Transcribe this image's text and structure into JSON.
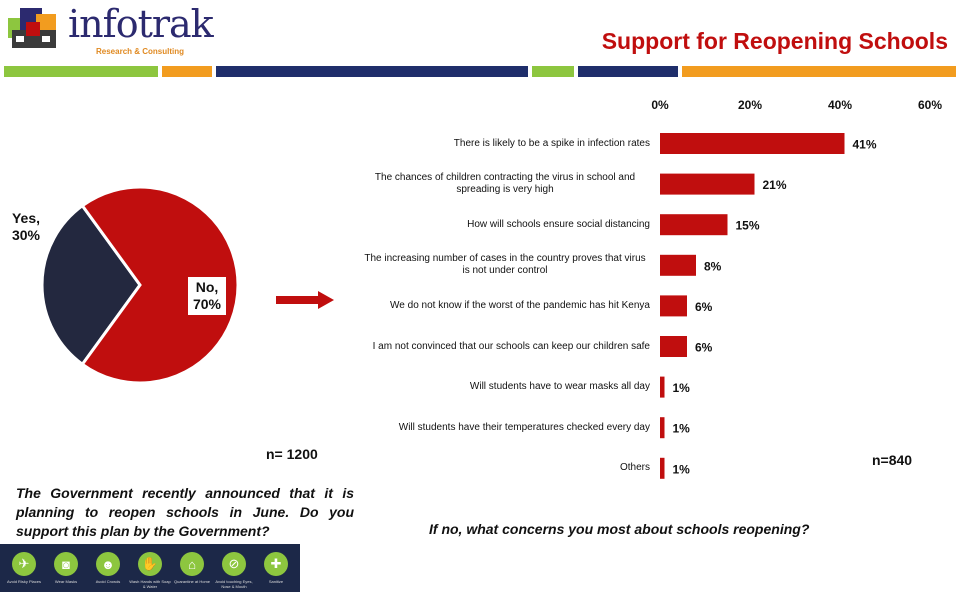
{
  "brand": {
    "name": "infotrak",
    "tagline": "Research & Consulting"
  },
  "title": "Support for Reopening Schools",
  "colors": {
    "red": "#c00e0e",
    "navy": "#23283f",
    "green": "#8dc63f",
    "orange": "#f29c1f",
    "blue": "#1f2e6b"
  },
  "pie": {
    "yes_label": "Yes,",
    "yes_value": "30%",
    "no_label": "No,",
    "no_value": "70%",
    "n_label": "n= 1200",
    "question": "The Government recently announced that it is planning to reopen schools in June. Do you support this plan by the Government?"
  },
  "bar": {
    "n_label": "n=840",
    "question": "If no, what concerns you most about schools reopening?"
  },
  "chart_data": [
    {
      "type": "pie",
      "categories": [
        "Yes",
        "No"
      ],
      "values": [
        30,
        70
      ],
      "colors": [
        "#23283f",
        "#c00e0e"
      ]
    },
    {
      "type": "bar",
      "orientation": "horizontal",
      "categories": [
        "There is likely to be a spike in infection rates",
        "The chances of children contracting the virus in school and spreading is very high",
        "How will schools ensure social distancing",
        "The increasing number of cases in the country proves that virus is not under control",
        "We do not know if the worst of the pandemic has hit Kenya",
        "I am not convinced that our schools can keep our children safe",
        "Will students have to wear masks all day",
        "Will students have their temperatures checked every day",
        "Others"
      ],
      "values": [
        41,
        21,
        15,
        8,
        6,
        6,
        1,
        1,
        1
      ],
      "value_labels": [
        "41%",
        "21%",
        "15%",
        "8%",
        "6%",
        "6%",
        "1%",
        "1%",
        "1%"
      ],
      "ticks": [
        "0%",
        "20%",
        "40%",
        "60%"
      ],
      "xlim": [
        0,
        60
      ],
      "axis_position": "top",
      "grid": false,
      "color": "#c00e0e"
    }
  ],
  "icons": [
    {
      "name": "plane-icon",
      "label": "Avoid Risky Places"
    },
    {
      "name": "mask-icon",
      "label": "Wear Masks"
    },
    {
      "name": "crowd-icon",
      "label": "Avoid Crowds"
    },
    {
      "name": "wash-hands-icon",
      "label": "Wash Hands with Soap & Water"
    },
    {
      "name": "house-icon",
      "label": "Quarantine at Home"
    },
    {
      "name": "no-touch-icon",
      "label": "Avoid touching Eyes, Nose & Mouth"
    },
    {
      "name": "sanitize-icon",
      "label": "Sanitize"
    }
  ]
}
